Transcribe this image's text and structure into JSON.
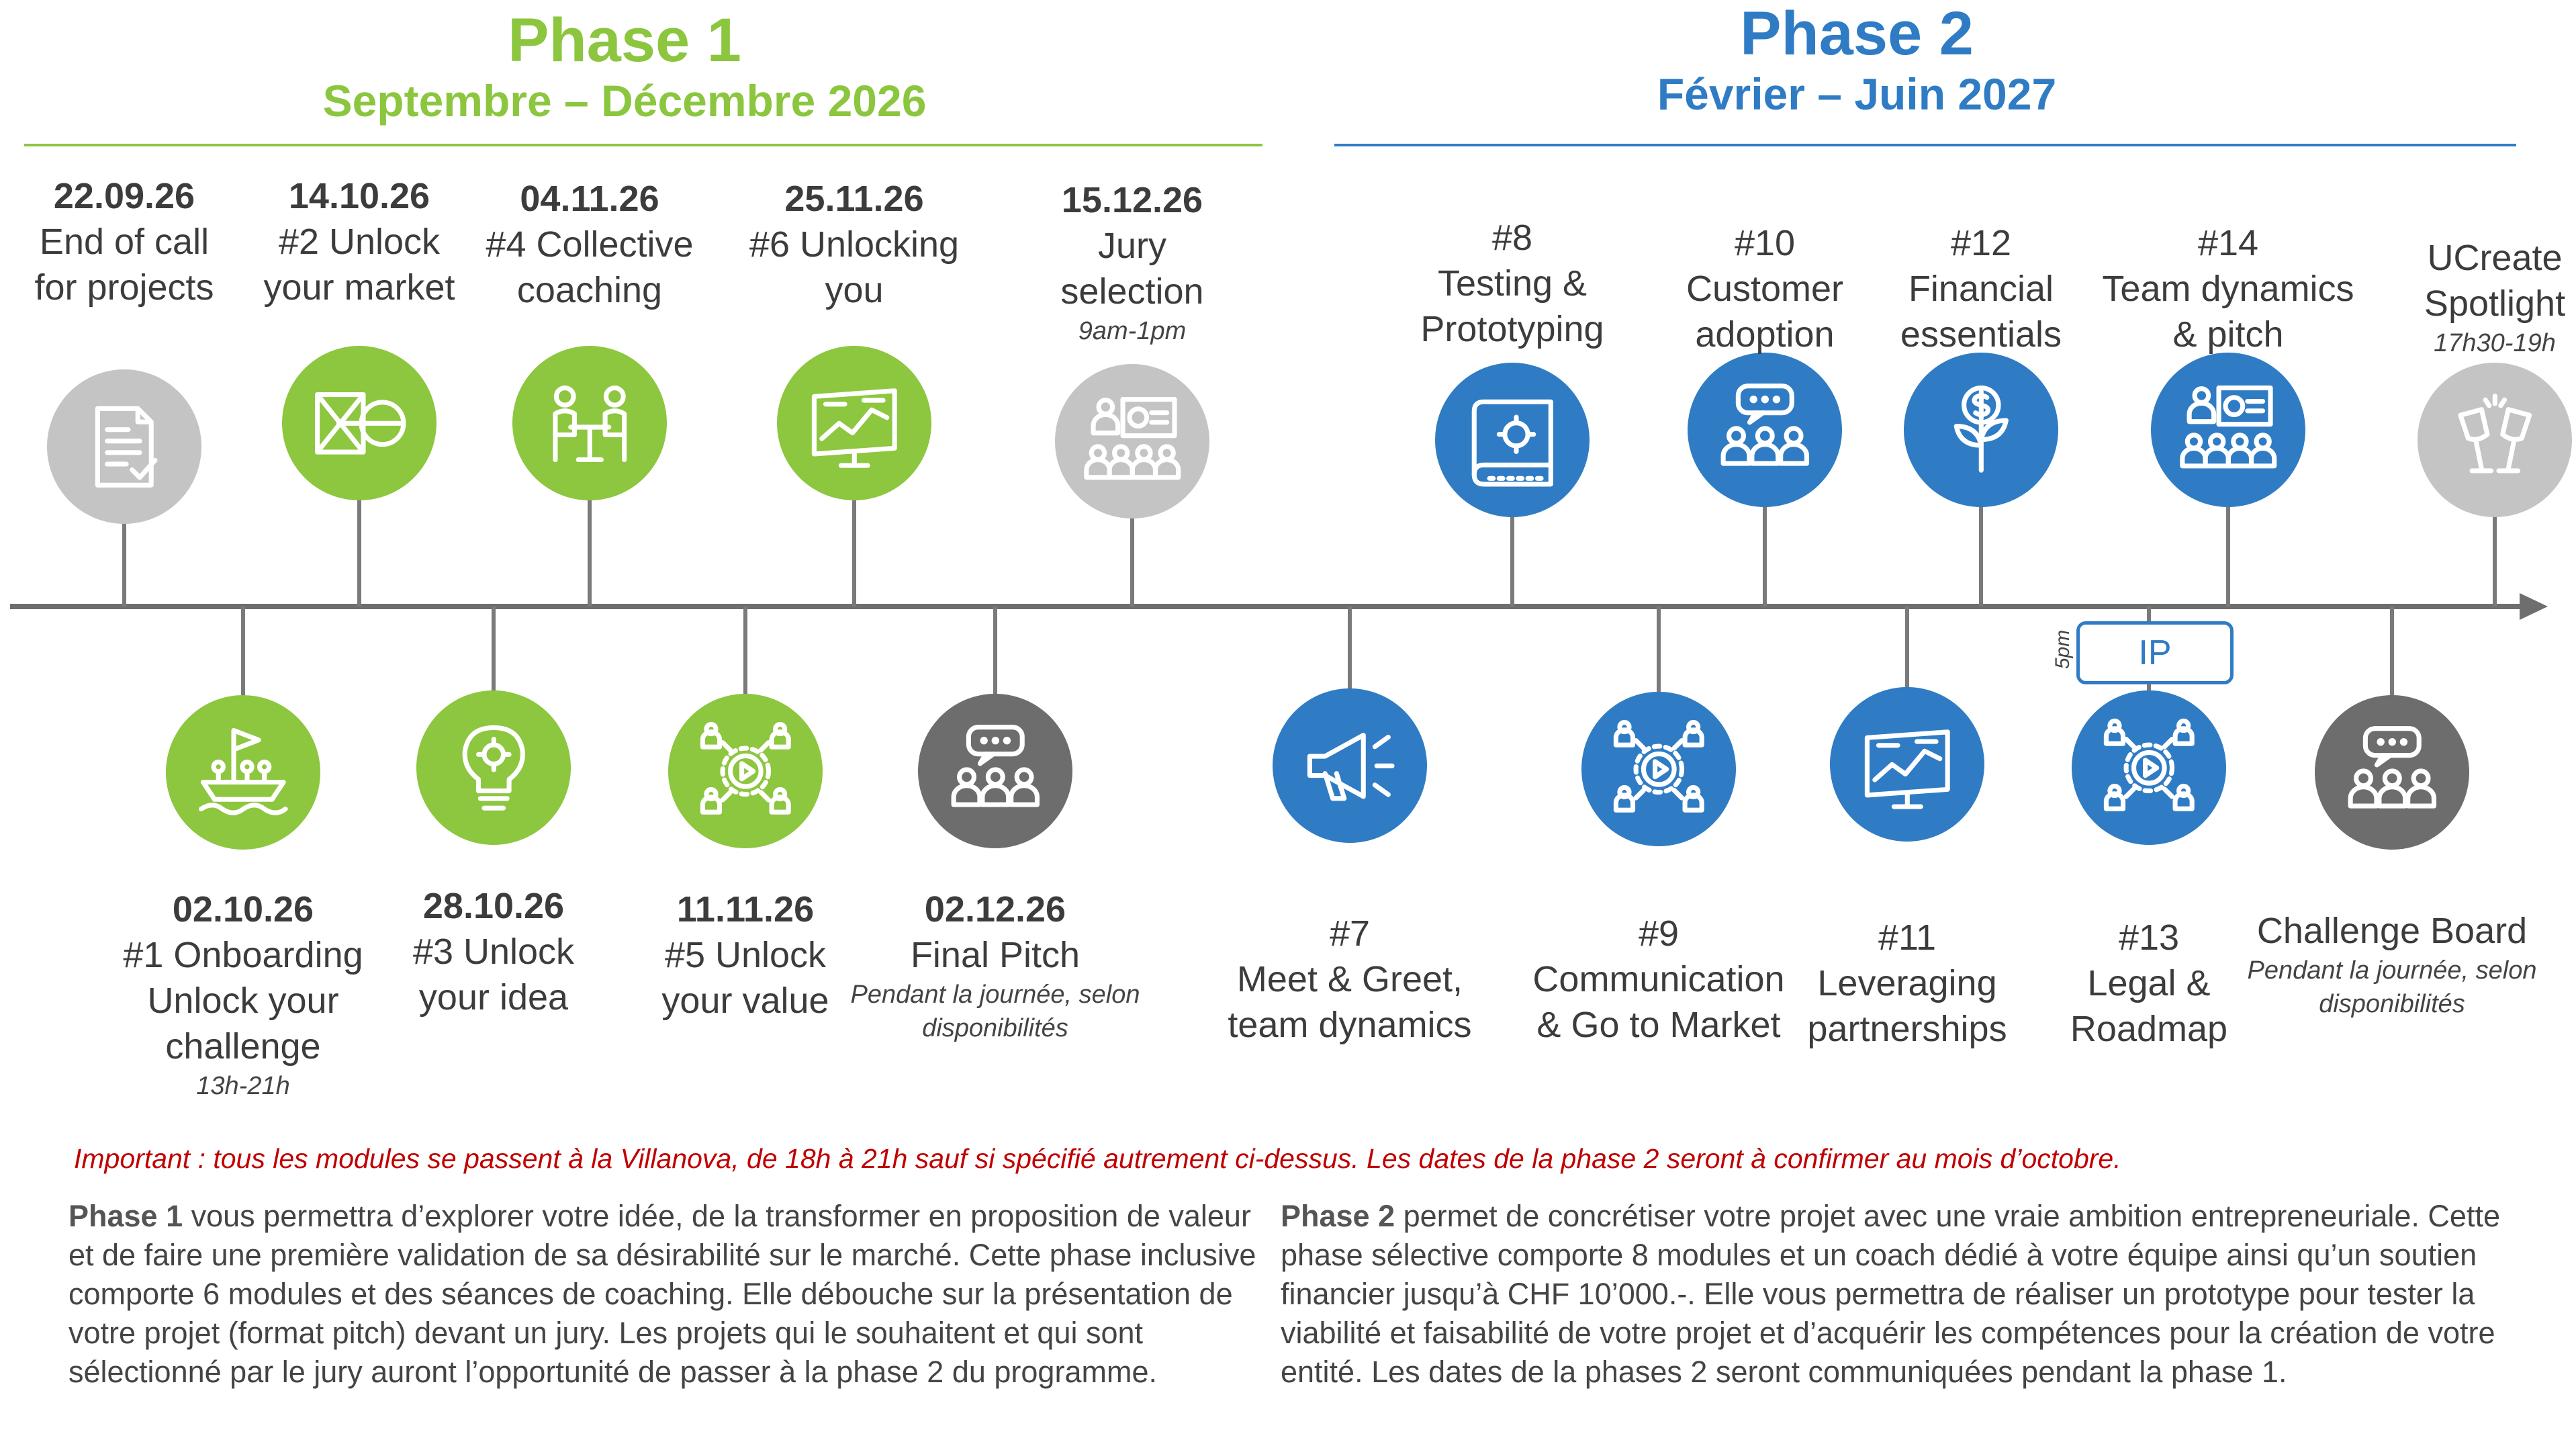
{
  "phase1": {
    "title": "Phase 1",
    "dates": "Septembre – Décembre 2026",
    "color": "#8cc63f"
  },
  "phase2": {
    "title": "Phase 2",
    "dates": "Février – Juin 2027",
    "color": "#2f7cc4"
  },
  "events_top": [
    {
      "date": "22.09.26",
      "lines": [
        "End of call",
        "for projects"
      ],
      "note": "",
      "icon": "document-check-icon",
      "color": "gray"
    },
    {
      "date": "14.10.26",
      "lines": [
        "#2 Unlock",
        "your market"
      ],
      "note": "",
      "icon": "market-diagram-icon",
      "color": "green"
    },
    {
      "date": "04.11.26",
      "lines": [
        "#4 Collective",
        "coaching"
      ],
      "note": "",
      "icon": "people-table-icon",
      "color": "green"
    },
    {
      "date": "25.11.26",
      "lines": [
        "#6 Unlocking",
        "you"
      ],
      "note": "",
      "icon": "whiteboard-chart-icon",
      "color": "green"
    },
    {
      "date": "15.12.26",
      "lines": [
        "Jury",
        "selection"
      ],
      "note": "9am-1pm",
      "icon": "presentation-audience-icon",
      "color": "gray"
    },
    {
      "date": "",
      "lines": [
        "#8",
        "Testing &",
        "Prototyping"
      ],
      "note": "",
      "icon": "blueprint-icon",
      "color": "blue"
    },
    {
      "date": "",
      "lines": [
        "#10",
        "Customer",
        "adoption"
      ],
      "note": "",
      "icon": "chat-group-icon",
      "color": "blue"
    },
    {
      "date": "",
      "lines": [
        "#12",
        "Financial",
        "essentials"
      ],
      "note": "",
      "icon": "money-plant-icon",
      "color": "blue"
    },
    {
      "date": "",
      "lines": [
        "#14",
        "Team dynamics",
        "& pitch"
      ],
      "note": "",
      "icon": "presentation-audience-icon",
      "color": "blue"
    },
    {
      "date": "",
      "lines": [
        "UCreate",
        "Spotlight"
      ],
      "note": "17h30-19h",
      "icon": "champagne-toast-icon",
      "color": "gray"
    }
  ],
  "events_bottom": [
    {
      "date": "02.10.26",
      "lines": [
        "#1 Onboarding",
        "Unlock your",
        "challenge"
      ],
      "note": "13h-21h",
      "icon": "boat-crew-icon",
      "color": "green"
    },
    {
      "date": "28.10.26",
      "lines": [
        "#3 Unlock",
        "your idea"
      ],
      "note": "",
      "icon": "lightbulb-gear-icon",
      "color": "green"
    },
    {
      "date": "11.11.26",
      "lines": [
        "#5 Unlock",
        "your value"
      ],
      "note": "",
      "icon": "network-value-icon",
      "color": "green"
    },
    {
      "date": "02.12.26",
      "lines": [
        "Final Pitch"
      ],
      "note": "Pendant la journée, selon disponibilités",
      "icon": "chat-group-icon",
      "color": "dgray"
    },
    {
      "date": "",
      "lines": [
        "#7",
        "Meet & Greet,",
        "team dynamics"
      ],
      "note": "",
      "icon": "megaphone-icon",
      "color": "blue"
    },
    {
      "date": "",
      "lines": [
        "#9",
        "Communication",
        "& Go to Market"
      ],
      "note": "",
      "icon": "network-value-icon",
      "color": "blue"
    },
    {
      "date": "",
      "lines": [
        "#11",
        "Leveraging",
        "partnerships"
      ],
      "note": "",
      "icon": "whiteboard-chart-icon",
      "color": "blue"
    },
    {
      "date": "",
      "lines": [
        "#13",
        "Legal &",
        "Roadmap"
      ],
      "note": "",
      "icon": "network-value-icon",
      "color": "blue"
    },
    {
      "date": "",
      "lines": [
        "Challenge Board"
      ],
      "note": "Pendant la journée, selon disponibilités",
      "icon": "chat-group-icon",
      "color": "dgray"
    }
  ],
  "ip": {
    "label": "IP",
    "time": "5pm"
  },
  "important": "Important : tous les modules se passent à la Villanova, de 18h à 21h sauf si spécifié autrement ci-dessus. Les dates de la phase 2 seront à confirmer au mois d’octobre.",
  "phase1_text": {
    "lead": "Phase 1",
    "body": " vous permettra d’explorer votre idée, de la transformer en proposition de valeur et de faire une première validation de sa désirabilité sur le marché. Cette phase inclusive comporte 6 modules et des séances de coaching. Elle débouche sur la présentation de votre projet (format pitch) devant un jury. Les projets qui le souhaitent et qui sont sélectionné par le jury auront l’opportunité de passer à la phase 2 du programme."
  },
  "phase2_text": {
    "lead": "Phase 2",
    "body": " permet de concrétiser votre projet avec une vraie ambition entrepreneuriale. Cette phase sélective comporte 8 modules et un coach dédié à votre équipe ainsi qu’un soutien financier jusqu’à CHF 10’000.-. Elle vous permettra de réaliser un prototype pour tester la viabilité  et faisabilité de votre projet et d’acquérir les compétences pour la création de votre entité. Les dates de la phases 2 seront communiquées pendant la phase 1."
  }
}
